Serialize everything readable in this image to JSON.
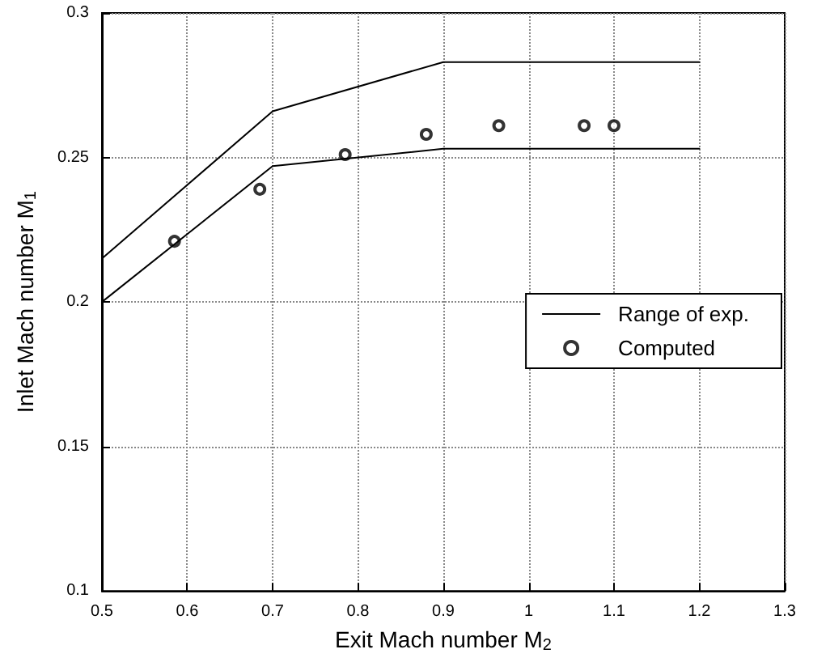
{
  "chart_data": {
    "type": "line",
    "xlabel": "Exit Mach number M$_{2}$",
    "ylabel": "Inlet Mach number M$_{1}$",
    "xlim": [
      0.5,
      1.3
    ],
    "xticks": [
      0.5,
      0.6,
      0.7,
      0.8,
      0.9,
      1,
      1.1,
      1.2,
      1.3
    ],
    "ylim": [
      0.1,
      0.3
    ],
    "yticks": [
      0.1,
      0.15,
      0.2,
      0.25,
      0.3
    ],
    "grid": true,
    "legend": "right",
    "series": [
      {
        "name": "Range of exp.",
        "color": "#000000",
        "marker": "none",
        "line_style": "solid",
        "x": [
          0.5,
          0.7,
          0.9,
          1.2
        ],
        "values": [
          0.215,
          0.266,
          0.283,
          0.283
        ]
      },
      {
        "color": "#000000",
        "marker": "none",
        "line_style": "solid",
        "x": [
          0.5,
          0.7,
          0.9,
          1.2
        ],
        "values": [
          0.2,
          0.247,
          0.253,
          0.253
        ]
      },
      {
        "name": "Computed",
        "type": "scatter",
        "color": "#000000",
        "marker": "circle",
        "x": [
          0.585,
          0.685,
          0.785,
          0.88,
          0.965,
          1.065,
          1.1
        ],
        "values": [
          0.221,
          0.239,
          0.251,
          0.258,
          0.261,
          0.261,
          0.261
        ]
      }
    ]
  }
}
